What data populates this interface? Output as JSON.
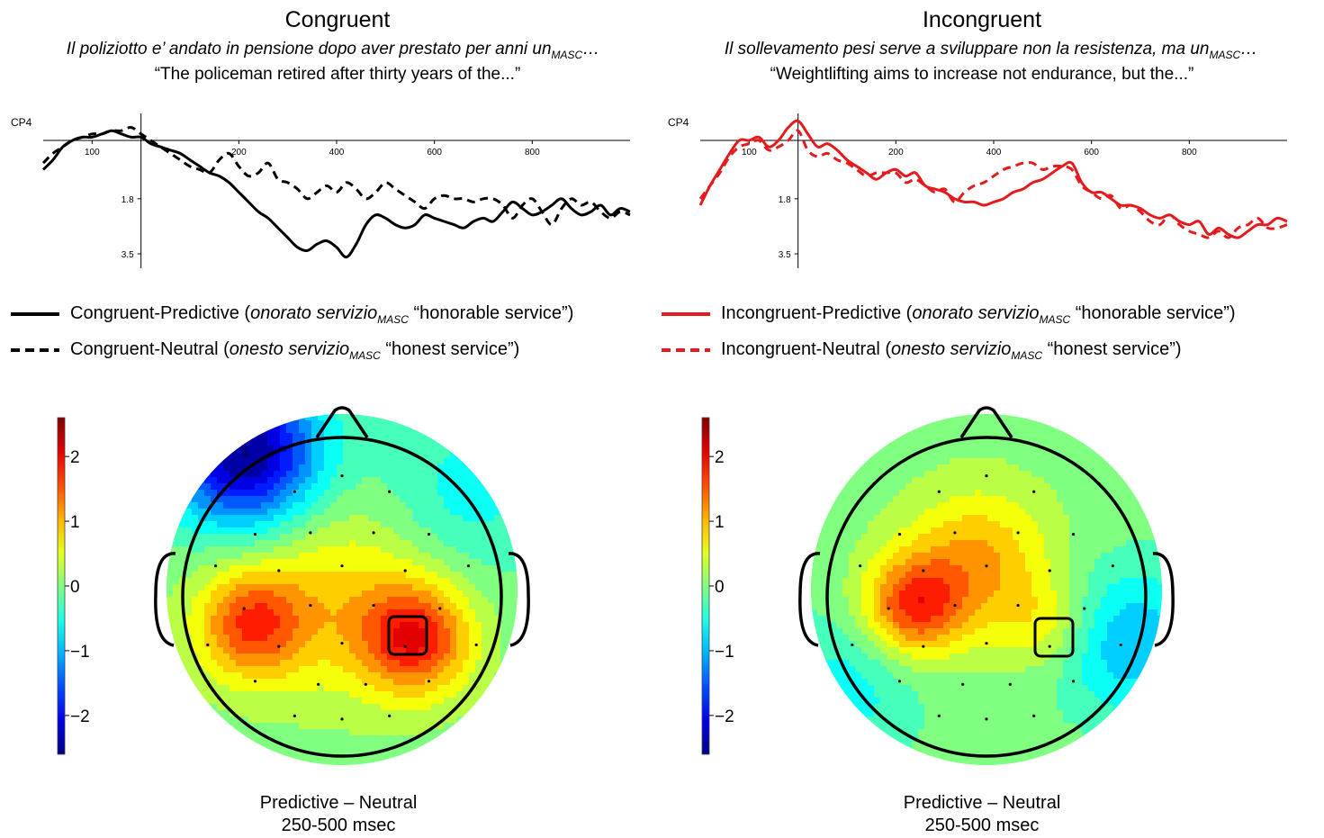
{
  "panels": [
    {
      "id": "congruent",
      "title": "Congruent",
      "italian_sentence": "Il poliziotto e’ andato in pensione dopo aver prestato per anni un",
      "sentence_subscript": "MASC",
      "sentence_tail": "…",
      "english_translation": "“The policeman retired after thirty years of the...”",
      "legend": [
        {
          "prefix": "Congruent-Predictive (",
          "italic": "onorato servizio",
          "subscript": "MASC",
          "suffix": " “honorable service”)",
          "style": "solid",
          "color": "#000000"
        },
        {
          "prefix": "Congruent-Neutral (",
          "italic": "onesto servizio",
          "subscript": "MASC",
          "suffix": " “honest service”)",
          "style": "dashed",
          "color": "#000000"
        }
      ],
      "caption_line1": "Predictive – Neutral",
      "caption_line2": "250-500 msec"
    },
    {
      "id": "incongruent",
      "title": "Incongruent",
      "italian_sentence": "Il sollevamento pesi serve a sviluppare non la resistenza, ma un",
      "sentence_subscript": "MASC",
      "sentence_tail": "…",
      "english_translation": "“Weightlifting aims to increase not endurance, but the...”",
      "legend": [
        {
          "prefix": "Incongruent-Predictive (",
          "italic": "onorato servizio",
          "subscript": "MASC",
          "suffix": " “honorable service”)",
          "style": "solid",
          "color": "#e41a1c"
        },
        {
          "prefix": "Incongruent-Neutral (",
          "italic": "onesto servizio",
          "subscript": "MASC",
          "suffix": " “honest service”)",
          "style": "dashed",
          "color": "#e41a1c"
        }
      ],
      "caption_line1": "Predictive – Neutral",
      "caption_line2": "250-500 msec"
    }
  ],
  "chart_data": [
    {
      "type": "line",
      "channel": "CP4",
      "x_ticks": [
        100,
        200,
        400,
        600,
        800
      ],
      "y_ticks": [
        1.8,
        3.5
      ],
      "xlim": [
        -200,
        1000
      ],
      "ylim": [
        -1.0,
        4.0
      ],
      "y_inverted": true,
      "series": [
        {
          "name": "Congruent-Predictive",
          "color": "#000000",
          "dash": "solid",
          "x": [
            -200,
            -180,
            -160,
            -140,
            -120,
            -100,
            -80,
            -60,
            -40,
            -20,
            0,
            20,
            40,
            60,
            80,
            100,
            120,
            140,
            160,
            180,
            200,
            220,
            240,
            260,
            280,
            300,
            320,
            340,
            360,
            380,
            400,
            420,
            440,
            460,
            480,
            500,
            520,
            540,
            560,
            580,
            600,
            620,
            640,
            660,
            680,
            700,
            720,
            740,
            760,
            780,
            800,
            820,
            840,
            860,
            880,
            900,
            920,
            940,
            960,
            980,
            1000
          ],
          "y": [
            0.9,
            0.6,
            0.2,
            0.0,
            -0.1,
            -0.1,
            -0.2,
            -0.3,
            -0.2,
            -0.1,
            -0.1,
            0.1,
            0.2,
            0.3,
            0.4,
            0.6,
            0.8,
            1.0,
            1.1,
            1.3,
            1.6,
            1.9,
            2.2,
            2.4,
            2.7,
            3.0,
            3.3,
            3.4,
            3.2,
            3.1,
            3.3,
            3.6,
            3.2,
            2.6,
            2.3,
            2.4,
            2.6,
            2.7,
            2.6,
            2.3,
            2.4,
            2.5,
            2.6,
            2.7,
            2.5,
            2.4,
            2.5,
            2.2,
            1.9,
            2.1,
            2.3,
            2.2,
            2.0,
            1.8,
            2.1,
            2.3,
            2.2,
            2.0,
            2.3,
            2.1,
            2.2
          ]
        },
        {
          "name": "Congruent-Neutral",
          "color": "#000000",
          "dash": "dashed",
          "x": [
            -200,
            -180,
            -160,
            -140,
            -120,
            -100,
            -80,
            -60,
            -40,
            -20,
            0,
            20,
            40,
            60,
            80,
            100,
            120,
            140,
            160,
            180,
            200,
            220,
            240,
            260,
            280,
            300,
            320,
            340,
            360,
            380,
            400,
            420,
            440,
            460,
            480,
            500,
            520,
            540,
            560,
            580,
            600,
            620,
            640,
            660,
            680,
            700,
            720,
            740,
            760,
            780,
            800,
            820,
            840,
            860,
            880,
            900,
            920,
            940,
            960,
            980,
            1000
          ],
          "y": [
            0.7,
            0.4,
            0.2,
            0.0,
            -0.1,
            -0.2,
            -0.2,
            -0.3,
            -0.3,
            -0.4,
            -0.2,
            0.0,
            0.2,
            0.4,
            0.6,
            0.8,
            0.9,
            1.0,
            0.6,
            0.4,
            0.8,
            1.1,
            1.0,
            0.7,
            1.2,
            1.3,
            1.5,
            1.8,
            1.6,
            1.4,
            1.6,
            1.3,
            1.5,
            1.8,
            1.6,
            1.3,
            1.5,
            1.7,
            1.9,
            2.1,
            1.8,
            1.7,
            1.8,
            1.8,
            1.9,
            1.8,
            1.8,
            2.0,
            2.4,
            2.0,
            1.8,
            2.2,
            2.6,
            2.1,
            1.8,
            2.0,
            1.9,
            2.2,
            2.4,
            2.2,
            2.3
          ]
        }
      ]
    },
    {
      "type": "line",
      "channel": "CP4",
      "x_ticks": [
        100,
        200,
        400,
        600,
        800
      ],
      "y_ticks": [
        1.8,
        3.5
      ],
      "xlim": [
        -200,
        1000
      ],
      "ylim": [
        -1.0,
        4.0
      ],
      "y_inverted": true,
      "series": [
        {
          "name": "Incongruent-Predictive",
          "color": "#e41a1c",
          "dash": "solid",
          "x": [
            -200,
            -180,
            -160,
            -140,
            -120,
            -100,
            -80,
            -60,
            -40,
            -20,
            0,
            20,
            40,
            60,
            80,
            100,
            120,
            140,
            160,
            180,
            200,
            220,
            240,
            260,
            280,
            300,
            320,
            340,
            360,
            380,
            400,
            420,
            440,
            460,
            480,
            500,
            520,
            540,
            560,
            580,
            600,
            620,
            640,
            660,
            680,
            700,
            720,
            740,
            760,
            780,
            800,
            820,
            840,
            860,
            880,
            900,
            920,
            940,
            960,
            980,
            1000
          ],
          "y": [
            2.0,
            1.4,
            0.9,
            0.4,
            0.0,
            0.0,
            -0.1,
            0.2,
            0.0,
            -0.4,
            -0.6,
            -0.2,
            0.2,
            0.1,
            0.3,
            0.6,
            0.8,
            1.0,
            1.2,
            1.0,
            0.9,
            1.1,
            1.0,
            1.4,
            1.5,
            1.6,
            1.8,
            1.9,
            1.9,
            2.0,
            1.9,
            1.8,
            1.6,
            1.5,
            1.3,
            1.2,
            1.0,
            0.8,
            0.7,
            1.3,
            1.6,
            1.6,
            1.8,
            2.0,
            2.0,
            2.1,
            2.3,
            2.4,
            2.3,
            2.5,
            2.6,
            2.5,
            2.9,
            2.7,
            2.9,
            3.0,
            2.8,
            2.6,
            2.6,
            2.4,
            2.5
          ]
        },
        {
          "name": "Incongruent-Neutral",
          "color": "#e41a1c",
          "dash": "dashed",
          "x": [
            -200,
            -180,
            -160,
            -140,
            -120,
            -100,
            -80,
            -60,
            -40,
            -20,
            0,
            20,
            40,
            60,
            80,
            100,
            120,
            140,
            160,
            180,
            200,
            220,
            240,
            260,
            280,
            300,
            320,
            340,
            360,
            380,
            400,
            420,
            440,
            460,
            480,
            500,
            520,
            540,
            560,
            580,
            600,
            620,
            640,
            660,
            680,
            700,
            720,
            740,
            760,
            780,
            800,
            820,
            840,
            860,
            880,
            900,
            920,
            940,
            960,
            980,
            1000
          ],
          "y": [
            1.8,
            1.4,
            1.0,
            0.5,
            0.2,
            0.1,
            0.0,
            0.3,
            0.2,
            0.0,
            -0.3,
            0.3,
            0.5,
            0.4,
            0.6,
            0.7,
            0.9,
            1.1,
            1.0,
            1.0,
            1.0,
            1.3,
            1.2,
            1.4,
            1.6,
            1.5,
            1.9,
            1.6,
            1.4,
            1.3,
            1.1,
            0.9,
            0.8,
            0.7,
            0.7,
            0.9,
            0.8,
            0.8,
            0.9,
            1.4,
            1.6,
            1.8,
            1.7,
            2.1,
            2.0,
            2.2,
            2.5,
            2.6,
            2.3,
            2.6,
            2.8,
            2.9,
            3.0,
            2.8,
            3.0,
            2.7,
            2.6,
            2.4,
            2.7,
            2.7,
            2.6
          ]
        }
      ]
    },
    {
      "type": "heatmap",
      "colorbar_ticks": [
        2,
        1,
        0,
        -1,
        -2
      ],
      "clim": [
        -2.6,
        2.6
      ],
      "peaks": [
        {
          "x": -0.52,
          "y": 0.2,
          "value": 1.5,
          "spread": 0.22
        },
        {
          "x": 0.42,
          "y": 0.28,
          "value": 1.7,
          "spread": 0.22
        },
        {
          "x": 0.0,
          "y": 0.05,
          "value": 0.8,
          "spread": 0.4
        },
        {
          "x": -0.55,
          "y": -0.78,
          "value": -2.6,
          "spread": 0.3
        },
        {
          "x": 0.7,
          "y": -0.55,
          "value": -0.6,
          "spread": 0.35
        }
      ]
    },
    {
      "type": "heatmap",
      "colorbar_ticks": [
        2,
        1,
        0,
        -1,
        -2
      ],
      "clim": [
        -2.6,
        2.6
      ],
      "peaks": [
        {
          "x": -0.42,
          "y": 0.1,
          "value": 1.6,
          "spread": 0.2
        },
        {
          "x": -0.05,
          "y": -0.15,
          "value": 1.1,
          "spread": 0.3
        },
        {
          "x": 0.35,
          "y": 0.2,
          "value": 0.6,
          "spread": 0.18
        },
        {
          "x": 0.82,
          "y": 0.3,
          "value": -1.0,
          "spread": 0.3
        },
        {
          "x": -0.8,
          "y": 0.55,
          "value": -0.6,
          "spread": 0.3
        }
      ]
    }
  ]
}
